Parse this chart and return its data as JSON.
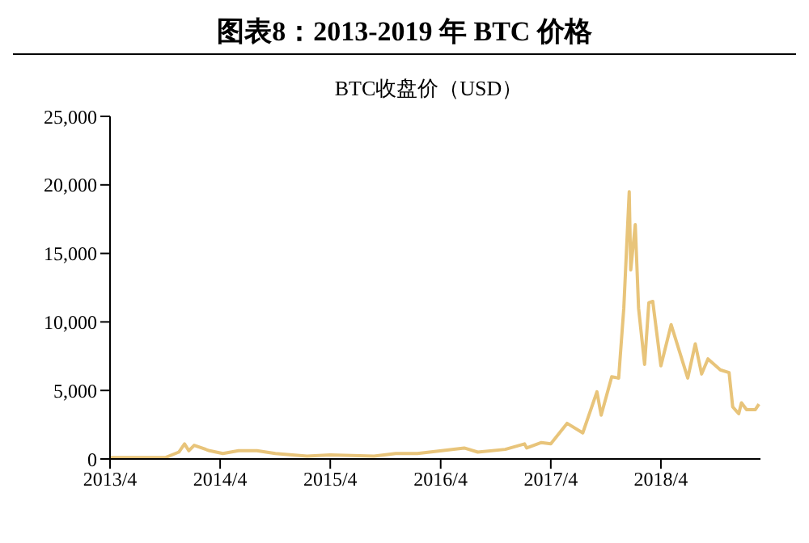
{
  "chart_data": {
    "type": "line",
    "title": "图表8：2013-2019 年 BTC 价格",
    "subtitle": "BTC收盘价（USD）",
    "x": [
      "2013-04-01",
      "2013-07-01",
      "2013-10-01",
      "2013-11-15",
      "2013-12-04",
      "2013-12-18",
      "2014-01-05",
      "2014-02-25",
      "2014-04-10",
      "2014-06-01",
      "2014-08-01",
      "2014-10-01",
      "2015-01-14",
      "2015-04-01",
      "2015-08-24",
      "2015-11-04",
      "2016-01-15",
      "2016-06-18",
      "2016-08-02",
      "2016-11-01",
      "2017-01-04",
      "2017-01-11",
      "2017-03-01",
      "2017-04-01",
      "2017-05-25",
      "2017-07-16",
      "2017-09-01",
      "2017-09-15",
      "2017-10-20",
      "2017-11-12",
      "2017-11-29",
      "2017-12-17",
      "2017-12-22",
      "2018-01-06",
      "2018-01-17",
      "2018-02-06",
      "2018-02-20",
      "2018-03-05",
      "2018-04-01",
      "2018-05-05",
      "2018-06-29",
      "2018-07-24",
      "2018-08-14",
      "2018-09-04",
      "2018-10-15",
      "2018-11-13",
      "2018-11-25",
      "2018-12-15",
      "2018-12-24",
      "2019-01-10",
      "2019-02-08",
      "2019-02-20"
    ],
    "series": [
      {
        "color": "#e8c47a",
        "values": [
          100,
          100,
          100,
          500,
          1100,
          600,
          1000,
          600,
          400,
          600,
          600,
          400,
          200,
          300,
          200,
          400,
          400,
          800,
          500,
          700,
          1100,
          800,
          1200,
          1100,
          2600,
          1900,
          4900,
          3200,
          6000,
          5900,
          11000,
          19500,
          13800,
          17100,
          11000,
          6900,
          11400,
          11500,
          6800,
          9800,
          5900,
          8400,
          6200,
          7300,
          6500,
          6300,
          3800,
          3300,
          4100,
          3600,
          3600,
          4000
        ]
      }
    ],
    "xlim": [
      "2013-04-01",
      "2019-02-25"
    ],
    "xticks": [
      {
        "value": "2013-04-01",
        "label": "2013/4"
      },
      {
        "value": "2014-04-01",
        "label": "2014/4"
      },
      {
        "value": "2015-04-01",
        "label": "2015/4"
      },
      {
        "value": "2016-04-01",
        "label": "2016/4"
      },
      {
        "value": "2017-04-01",
        "label": "2017/4"
      },
      {
        "value": "2018-04-01",
        "label": "2018/4"
      }
    ],
    "ylim": [
      0,
      25000
    ],
    "yticks": [
      0,
      {
        "value": 5000,
        "label": "5,000"
      },
      {
        "value": 10000,
        "label": "10,000"
      },
      {
        "value": 15000,
        "label": "15,000"
      },
      {
        "value": 20000,
        "label": "20,000"
      },
      {
        "value": 25000,
        "label": "25,000"
      }
    ],
    "grid": false,
    "legend": false,
    "marker": "none",
    "line_style": "solid"
  }
}
